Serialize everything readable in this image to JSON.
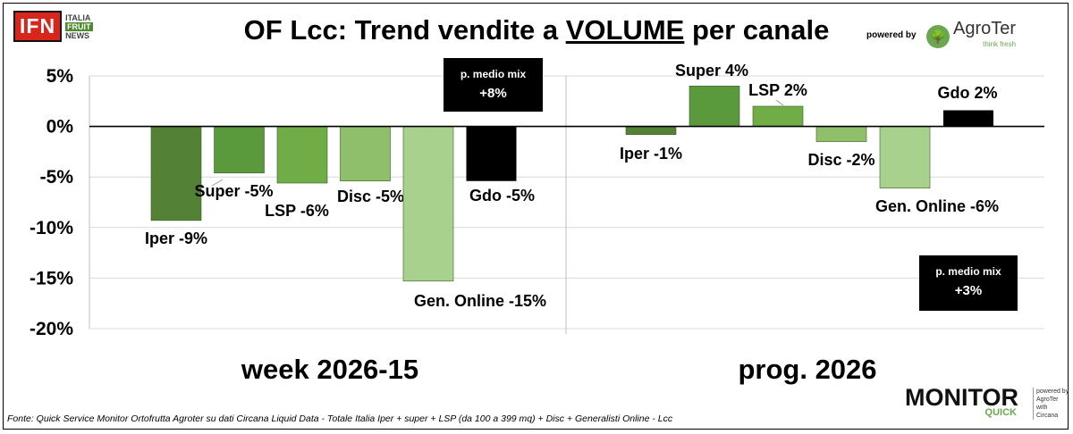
{
  "header": {
    "title_prefix": "OF Lcc: Trend vendite a ",
    "title_underlined": "VOLUME",
    "title_suffix": " per canale",
    "powered_by": "powered by",
    "brand_agroter": "AgroTer",
    "brand_agroter_sub": "think fresh"
  },
  "ifn_logo": {
    "mark": "IFN",
    "line1": "ITALIA",
    "line2": "FRUIT",
    "line3": "NEWS"
  },
  "monitor_logo": {
    "word": "MONITOR",
    "sub": "QUICK",
    "side1": "powered by",
    "side2": "AgroTer",
    "side3": "with",
    "side4": "Circana"
  },
  "footer": {
    "source": "Fonte: Quick Service Monitor Ortofrutta Agroter su dati Circana Liquid Data - Totale Italia Iper + super + LSP (da 100 a 399 mq) + Disc + Generalisti Online - Lcc"
  },
  "colors": {
    "iper": "#538135",
    "super": "#5a9a3c",
    "lsp": "#70ad47",
    "disc": "#8fbf6a",
    "online": "#a9d18e",
    "gdo": "#000000"
  },
  "chart_data": {
    "type": "bar",
    "ylim": [
      -20,
      5
    ],
    "yticks": [
      5,
      0,
      -5,
      -10,
      -15,
      -20
    ],
    "ytick_labels": [
      "5%",
      "0%",
      "-5%",
      "-10%",
      "-15%",
      "-20%"
    ],
    "groups": [
      {
        "name": "week 2026-15",
        "mix_box": {
          "line1": "p. medio mix",
          "line2": "+8%"
        },
        "bars": [
          {
            "channel": "Iper",
            "value": -9.3,
            "label": "Iper -9%"
          },
          {
            "channel": "Super",
            "value": -4.6,
            "label": "Super -5%"
          },
          {
            "channel": "LSP",
            "value": -5.6,
            "label": "LSP -6%"
          },
          {
            "channel": "Disc",
            "value": -5.4,
            "label": "Disc -5%"
          },
          {
            "channel": "Gen. Online",
            "value": -15.3,
            "label": "Gen. Online -15%"
          },
          {
            "channel": "Gdo",
            "value": -5.4,
            "label": "Gdo -5%"
          }
        ]
      },
      {
        "name": "prog. 2026",
        "mix_box": {
          "line1": "p. medio mix",
          "line2": "+3%"
        },
        "bars": [
          {
            "channel": "Iper",
            "value": -0.8,
            "label": "Iper -1%"
          },
          {
            "channel": "Super",
            "value": 4.0,
            "label": "Super 4%"
          },
          {
            "channel": "LSP",
            "value": 2.0,
            "label": "LSP 2%"
          },
          {
            "channel": "Disc",
            "value": -1.5,
            "label": "Disc -2%"
          },
          {
            "channel": "Gen. Online",
            "value": -6.1,
            "label": "Gen. Online -6%"
          },
          {
            "channel": "Gdo",
            "value": 1.6,
            "label": "Gdo 2%"
          }
        ]
      }
    ]
  }
}
